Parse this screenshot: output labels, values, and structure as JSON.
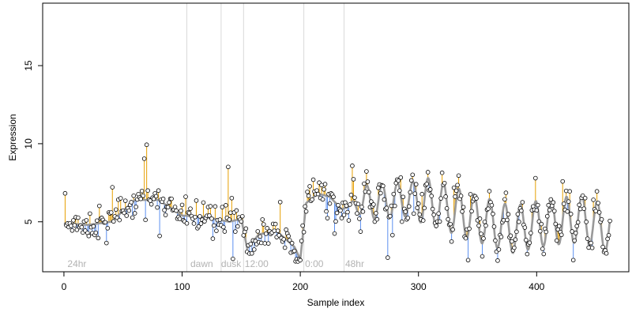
{
  "chart_data": {
    "type": "scatter",
    "title": "",
    "xlabel": "Sample index",
    "ylabel": "Expression",
    "xlim": [
      -18,
      478
    ],
    "ylim": [
      1.8,
      19.0
    ],
    "xticks": [
      0,
      100,
      200,
      300,
      400
    ],
    "yticks": [
      5,
      10,
      15
    ],
    "grid": false,
    "colors": {
      "fit_line": "#999999",
      "above_fit": "#e69f00",
      "below_fit": "#5b8ff0",
      "phase_line": "#d9d9d9",
      "phase_label": "#b3b3b3"
    },
    "phase_markers": [
      {
        "x": 104,
        "label": ""
      },
      {
        "x": 133,
        "label": ""
      },
      {
        "x": 152,
        "label": ""
      },
      {
        "x": 203,
        "label": ""
      },
      {
        "x": 237,
        "label": ""
      }
    ],
    "phase_labels": [
      {
        "x": 3,
        "label": "24hr"
      },
      {
        "x": 107,
        "label": "dawn"
      },
      {
        "x": 133,
        "label": "dusk"
      },
      {
        "x": 153,
        "label": "12:00"
      },
      {
        "x": 204,
        "label": "0:00"
      },
      {
        "x": 238,
        "label": "48hr"
      }
    ],
    "fit_anchors": [
      [
        0,
        4.9
      ],
      [
        20,
        4.8
      ],
      [
        40,
        5.0
      ],
      [
        60,
        6.4
      ],
      [
        80,
        6.4
      ],
      [
        100,
        5.4
      ],
      [
        120,
        5.3
      ],
      [
        140,
        5.0
      ],
      [
        150,
        5.2
      ],
      [
        155,
        3.3
      ],
      [
        165,
        4.2
      ],
      [
        180,
        4.4
      ],
      [
        195,
        3.4
      ],
      [
        200,
        2.6
      ],
      [
        205,
        6.2
      ],
      [
        215,
        6.8
      ],
      [
        225,
        6.6
      ],
      [
        235,
        5.8
      ],
      [
        250,
        6.2
      ],
      [
        280,
        6.4
      ],
      [
        300,
        6.5
      ],
      [
        320,
        6.0
      ],
      [
        350,
        5.2
      ],
      [
        380,
        4.5
      ],
      [
        410,
        5.0
      ],
      [
        440,
        5.2
      ],
      [
        462,
        4.4
      ]
    ],
    "oscillation": {
      "start": 240,
      "period": 13,
      "amplitude": 1.1,
      "amplitude_after_300": 1.5
    },
    "residual_scale": 0.9,
    "sample_count": 462,
    "seed": 7
  }
}
